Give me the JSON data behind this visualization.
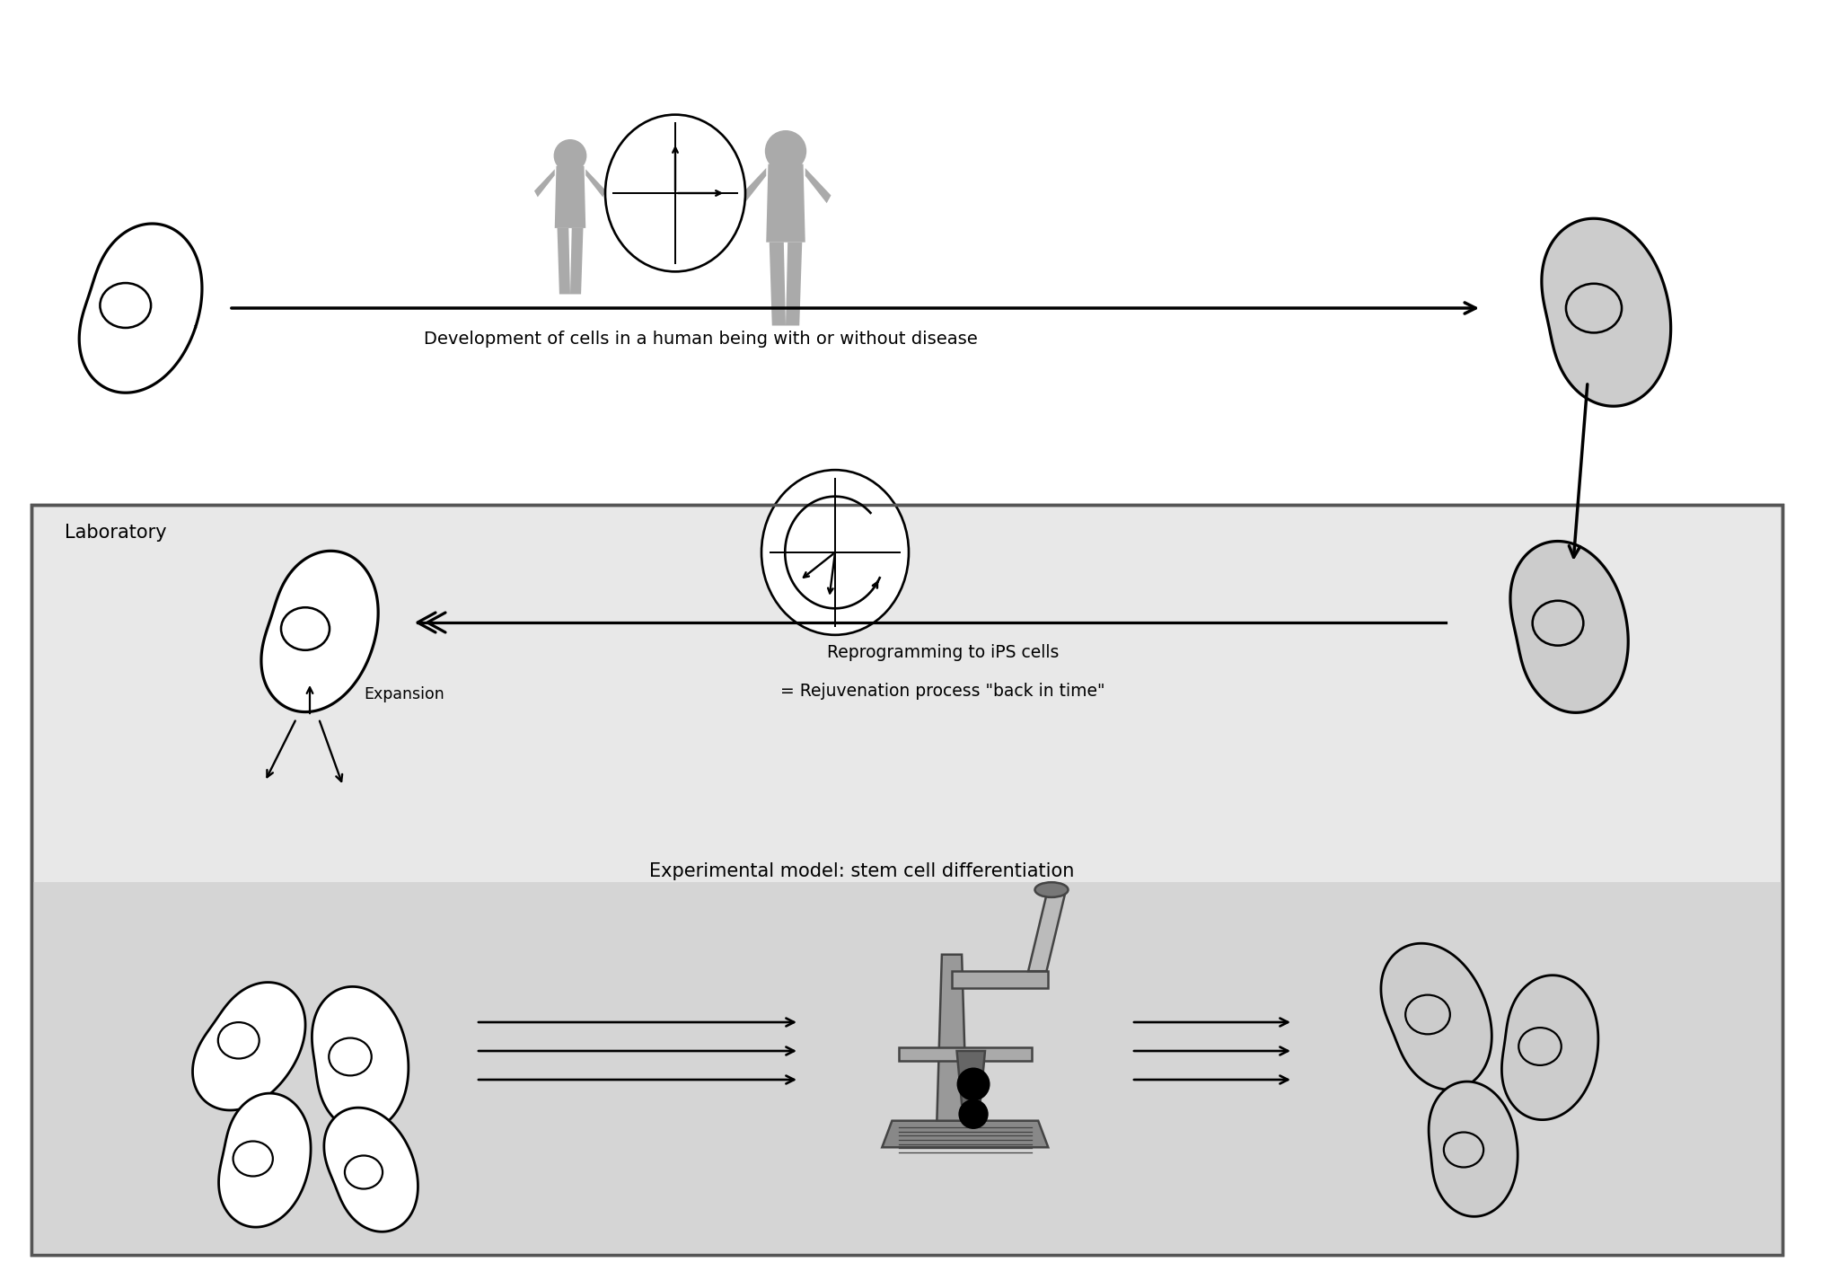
{
  "bg_color": "#ffffff",
  "lab_box_color": "#e8e8e8",
  "lab_box_border": "#555555",
  "cell_outline_color": "#111111",
  "cell_fill_white": "#ffffff",
  "cell_fill_gray": "#c8c8c8",
  "human_figure_color": "#aaaaaa",
  "arrow_color": "#111111",
  "text_arrow_label": "Development of cells in a human being with or without disease",
  "text_reprogramming_1": "Reprogramming to iPS cells",
  "text_reprogramming_2": "= Rejuvenation process \"back in time\"",
  "text_expansion": "Expansion",
  "text_lab": "Laboratory",
  "text_experimental": "Experimental model: stem cell differentiation",
  "font_size_main": 14,
  "font_size_lab": 15,
  "font_size_exp": 15
}
